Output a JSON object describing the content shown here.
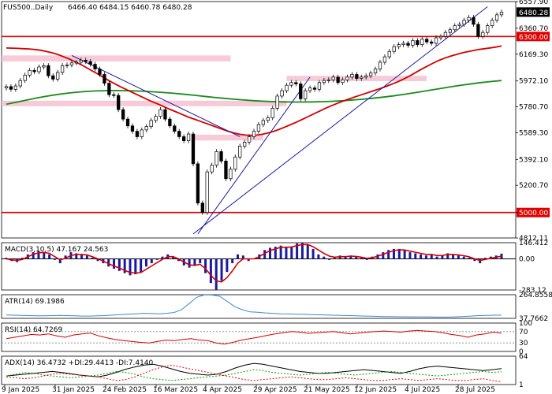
{
  "header": {
    "symbol": "FUS500..Daily",
    "ohlc": "6466.40 6484.15 6460.78 6480.28"
  },
  "chart_data": [
    {
      "type": "candlestick",
      "title": "FUS500..Daily",
      "ohlc_text": "6466.40 6484.15 6460.78 6480.28",
      "last_price": 6480.28,
      "ylim": [
        4812.11,
        6557.9
      ],
      "y_ticks": [
        "6557.90",
        "6360.70",
        "6169.30",
        "5972.10",
        "5780.70",
        "5589.30",
        "5392.10",
        "5200.70",
        "5000.00",
        "4812.11"
      ],
      "x_ticks": [
        "9 Jan 2025",
        "31 Jan 2025",
        "24 Feb 2025",
        "16 Mar 2025",
        "4 Apr 2025",
        "29 Apr 2025",
        "21 May 2025",
        "12 Jun 2025",
        "4 Jul 2025",
        "28 Jul 2025"
      ],
      "horizontal_levels": [
        {
          "value": 6300.0,
          "label": "6300.00",
          "color": "#e00000"
        },
        {
          "value": 5000.0,
          "label": "5000.00",
          "color": "#e00000"
        }
      ],
      "zones": [
        {
          "from": 6116,
          "to": 6160,
          "color": "#f4c2d0"
        },
        {
          "from": 5785,
          "to": 5826,
          "color": "#f4c2d0"
        },
        {
          "from": 5532,
          "to": 5575,
          "color": "#f4c2d0"
        },
        {
          "from": 5970,
          "to": 6010,
          "color": "#f4c2d0"
        }
      ],
      "close_series": [
        5930,
        5910,
        5935,
        5975,
        6015,
        6050,
        6040,
        6075,
        6085,
        6010,
        5985,
        6035,
        6085,
        6090,
        6105,
        6110,
        6125,
        6115,
        6095,
        6060,
        6020,
        5955,
        5870,
        5865,
        5760,
        5690,
        5640,
        5600,
        5560,
        5610,
        5635,
        5680,
        5710,
        5760,
        5690,
        5640,
        5600,
        5560,
        5530,
        5580,
        5360,
        5070,
        5000,
        5300,
        5350,
        5450,
        5380,
        5250,
        5320,
        5410,
        5490,
        5520,
        5560,
        5600,
        5650,
        5680,
        5700,
        5770,
        5860,
        5900,
        5940,
        5960,
        5950,
        5840,
        5900,
        5920,
        5910,
        5960,
        5975,
        5980,
        6000,
        5960,
        5980,
        6000,
        6020,
        5990,
        6000,
        6010,
        6030,
        6060,
        6110,
        6150,
        6190,
        6225,
        6240,
        6250,
        6235,
        6270,
        6240,
        6280,
        6260,
        6250,
        6290,
        6300,
        6330,
        6350,
        6380,
        6390,
        6420,
        6440,
        6390,
        6300,
        6330,
        6380,
        6420,
        6460,
        6480
      ],
      "sma_red": [
        6215,
        6214,
        6212,
        6210,
        6208,
        6204,
        6199,
        6190,
        6180,
        6168,
        6152,
        6135,
        6115,
        6095,
        6072,
        6048,
        6025,
        6000,
        5975,
        5952,
        5930,
        5910,
        5890,
        5870,
        5850,
        5830,
        5812,
        5795,
        5776,
        5758,
        5740,
        5722,
        5705,
        5690,
        5675,
        5660,
        5645,
        5630,
        5614,
        5600,
        5588,
        5578,
        5572,
        5570,
        5572,
        5578,
        5588,
        5600,
        5615,
        5632,
        5650,
        5668,
        5688,
        5708,
        5728,
        5748,
        5768,
        5786,
        5804,
        5820,
        5836,
        5850,
        5864,
        5878,
        5892,
        5906,
        5920,
        5936,
        5952,
        5970,
        5990,
        6012,
        6036,
        6060,
        6082,
        6104,
        6124,
        6140,
        6154,
        6166,
        6178,
        6188,
        6196,
        6204,
        6210,
        6216,
        6222,
        6230
      ],
      "sma_green": [
        5800,
        5815,
        5830,
        5845,
        5858,
        5870,
        5880,
        5888,
        5894,
        5898,
        5900,
        5901,
        5900,
        5898,
        5895,
        5891,
        5886,
        5880,
        5873,
        5866,
        5858,
        5850,
        5843,
        5837,
        5831,
        5826,
        5822,
        5819,
        5817,
        5816,
        5816,
        5817,
        5819,
        5822,
        5826,
        5831,
        5837,
        5844,
        5852,
        5861,
        5871,
        5882,
        5894,
        5906,
        5918,
        5930,
        5941,
        5951,
        5960,
        5968,
        5975
      ],
      "trendlines": [
        {
          "from": [
            4842,
            "4 Apr"
          ],
          "to": [
            6500,
            "Jul end"
          ],
          "color": "#1a1aa0"
        },
        {
          "from": [
            6140,
            "Feb"
          ],
          "to": [
            5560,
            "Apr"
          ],
          "color": "#1a1aa0"
        }
      ]
    },
    {
      "type": "bar",
      "title": "MACD(3,10,5) 47.167 24.563",
      "label": "MACD(3,10,5)",
      "values_text": "47.167 24.563",
      "ylim": [
        -283.12,
        146.41
      ],
      "y_ticks": [
        "146.412",
        "0.00",
        "-283.12"
      ],
      "histogram": [
        10,
        -20,
        -30,
        10,
        40,
        60,
        70,
        60,
        40,
        -10,
        -40,
        30,
        60,
        50,
        40,
        30,
        10,
        -20,
        -40,
        -70,
        -90,
        -110,
        -130,
        -150,
        -140,
        -120,
        -70,
        -40,
        -10,
        20,
        40,
        20,
        -20,
        -60,
        -80,
        -60,
        -40,
        -130,
        -220,
        -283,
        -200,
        -120,
        -40,
        40,
        30,
        -20,
        0,
        40,
        80,
        100,
        110,
        120,
        100,
        110,
        140,
        146,
        130,
        90,
        40,
        20,
        -10,
        10,
        30,
        20,
        30,
        20,
        10,
        -10,
        20,
        40,
        60,
        80,
        90,
        90,
        80,
        60,
        50,
        40,
        30,
        40,
        20,
        30,
        50,
        40,
        30,
        20,
        10,
        -20,
        -40,
        10,
        20,
        30,
        47
      ],
      "signal": [
        0,
        -10,
        -15,
        -5,
        20,
        40,
        55,
        58,
        50,
        20,
        -10,
        5,
        30,
        40,
        40,
        35,
        20,
        0,
        -20,
        -45,
        -65,
        -85,
        -105,
        -125,
        -130,
        -125,
        -95,
        -65,
        -35,
        -5,
        20,
        20,
        0,
        -30,
        -55,
        -60,
        -50,
        -90,
        -150,
        -200,
        -210,
        -170,
        -110,
        -40,
        0,
        0,
        0,
        20,
        50,
        75,
        90,
        105,
        105,
        108,
        120,
        130,
        130,
        110,
        80,
        50,
        25,
        15,
        20,
        20,
        25,
        22,
        15,
        5,
        10,
        25,
        40,
        60,
        75,
        82,
        80,
        70,
        60,
        50,
        40,
        40,
        30,
        30,
        40,
        40,
        35,
        28,
        18,
        0,
        -15,
        -5,
        5,
        15,
        24.563
      ]
    },
    {
      "type": "line",
      "title": "ATR(14) 69.1986",
      "label": "ATR(14)",
      "value_text": "69.1986",
      "ylim": [
        37.7662,
        264.8558
      ],
      "y_ticks": [
        "264.8558",
        "37.7662"
      ],
      "values": [
        70,
        68,
        66,
        64,
        62,
        62,
        64,
        66,
        64,
        62,
        60,
        60,
        62,
        64,
        70,
        74,
        78,
        82,
        86,
        84,
        82,
        86,
        94,
        120,
        180,
        240,
        264,
        262,
        250,
        200,
        150,
        120,
        100,
        96,
        90,
        86,
        82,
        80,
        78,
        76,
        74,
        72,
        70,
        68,
        66,
        64,
        62,
        60,
        58,
        56,
        55,
        54,
        53,
        52,
        52,
        52,
        51,
        50,
        50,
        52,
        56,
        60,
        64,
        66,
        68,
        69
      ]
    },
    {
      "type": "line",
      "title": "RSI(14) 64.7269",
      "label": "RSI(14)",
      "value_text": "64.7269",
      "ylim": [
        0,
        100
      ],
      "y_ticks": [
        "100",
        "70",
        "30",
        "0"
      ],
      "levels": [
        70,
        30
      ],
      "values": [
        45,
        50,
        55,
        60,
        58,
        62,
        55,
        50,
        58,
        62,
        65,
        55,
        48,
        42,
        38,
        35,
        32,
        30,
        35,
        40,
        38,
        42,
        45,
        40,
        38,
        30,
        26,
        32,
        40,
        45,
        50,
        56,
        62,
        66,
        70,
        68,
        64,
        66,
        68,
        70,
        66,
        62,
        65,
        68,
        70,
        72,
        70,
        68,
        72,
        74,
        72,
        70,
        66,
        60,
        56,
        50,
        58,
        62,
        68,
        64.7
      ]
    },
    {
      "type": "line",
      "title": "ADX(14) 36.4732 +DI:29.4413 -DI:7.4140",
      "label": "ADX(14)",
      "values_text": "36.4732 +DI:29.4413 -DI:7.4140",
      "ylim": [
        1,
        64
      ],
      "y_ticks": [
        "64",
        "1"
      ],
      "series": [
        {
          "name": "ADX",
          "color": "#000000",
          "values": [
            20,
            22,
            24,
            26,
            28,
            30,
            28,
            25,
            22,
            20,
            18,
            22,
            28,
            35,
            40,
            44,
            46,
            42,
            36,
            30,
            26,
            24,
            22,
            24,
            30,
            38,
            44,
            48,
            46,
            42,
            38,
            34,
            30,
            28,
            26,
            26,
            28,
            30,
            32,
            34,
            32,
            30,
            28,
            26,
            30,
            36,
            40,
            42,
            40,
            38,
            36,
            34,
            32,
            34,
            36.5
          ]
        },
        {
          "name": "+DI",
          "color": "#00a000",
          "values": [
            20,
            24,
            28,
            26,
            22,
            20,
            18,
            16,
            18,
            20,
            22,
            26,
            30,
            28,
            24,
            18,
            14,
            12,
            10,
            12,
            14,
            16,
            18,
            20,
            22,
            26,
            30,
            34,
            32,
            28,
            26,
            24,
            22,
            24,
            26,
            28,
            26,
            24,
            22,
            24,
            26,
            28,
            30,
            28,
            26,
            24,
            22,
            20,
            22,
            24,
            26,
            28,
            30,
            28,
            29.4
          ]
        },
        {
          "name": "-DI",
          "color": "#e00000",
          "values": [
            18,
            16,
            14,
            16,
            20,
            24,
            26,
            24,
            22,
            20,
            18,
            14,
            10,
            12,
            18,
            26,
            34,
            40,
            44,
            40,
            36,
            32,
            28,
            24,
            20,
            16,
            12,
            10,
            12,
            14,
            16,
            18,
            16,
            14,
            12,
            12,
            14,
            16,
            14,
            12,
            10,
            10,
            12,
            14,
            12,
            10,
            12,
            14,
            12,
            10,
            10,
            12,
            14,
            10,
            7.4
          ]
        }
      ]
    }
  ]
}
